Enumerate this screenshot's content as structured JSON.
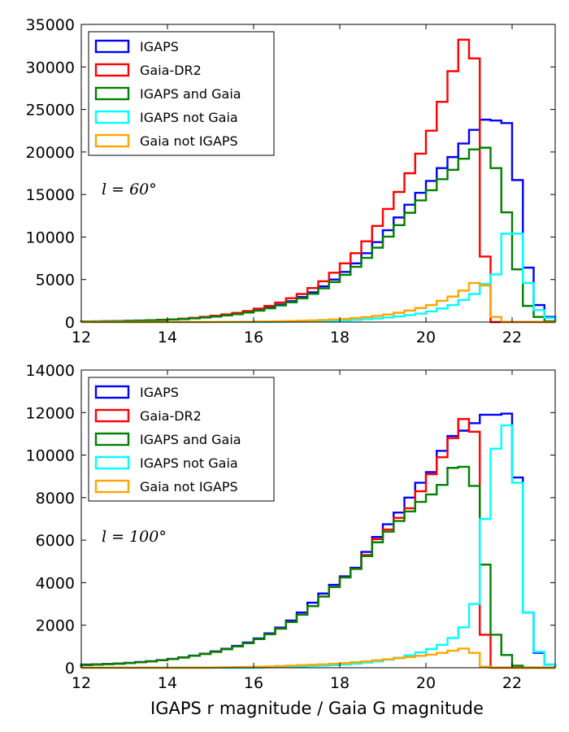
{
  "chart_data": [
    {
      "type": "histogram-step",
      "xlim": [
        12,
        23
      ],
      "ylim": [
        0,
        35000
      ],
      "xticks": [
        12,
        14,
        16,
        18,
        20,
        22
      ],
      "yticks": [
        0,
        5000,
        10000,
        15000,
        20000,
        25000,
        30000,
        35000
      ],
      "xlabel": "",
      "annotation": "l = 60°",
      "legend_position": "top-left",
      "bin_edges": [
        12,
        12.25,
        12.5,
        12.75,
        13,
        13.25,
        13.5,
        13.75,
        14,
        14.25,
        14.5,
        14.75,
        15,
        15.25,
        15.5,
        15.75,
        16,
        16.25,
        16.5,
        16.75,
        17,
        17.25,
        17.5,
        17.75,
        18,
        18.25,
        18.5,
        18.75,
        19,
        19.25,
        19.5,
        19.75,
        20,
        20.25,
        20.5,
        20.75,
        21,
        21.25,
        21.5,
        21.75,
        22,
        22.25,
        22.5,
        22.75,
        23
      ],
      "series": [
        {
          "name": "IGAPS",
          "color": "#0000ff",
          "values": [
            80,
            90,
            100,
            120,
            150,
            180,
            220,
            260,
            310,
            380,
            460,
            560,
            680,
            820,
            980,
            1180,
            1420,
            1700,
            2050,
            2450,
            2950,
            3500,
            4200,
            5000,
            5900,
            6900,
            8100,
            9400,
            10800,
            12300,
            13800,
            15200,
            16600,
            18100,
            19400,
            21000,
            22600,
            23800,
            23700,
            23400,
            16700,
            6400,
            2000,
            600
          ]
        },
        {
          "name": "Gaia-DR2",
          "color": "#ff0000",
          "values": [
            70,
            80,
            90,
            110,
            140,
            170,
            210,
            260,
            320,
            400,
            500,
            610,
            740,
            900,
            1080,
            1300,
            1580,
            1900,
            2300,
            2800,
            3300,
            4000,
            4800,
            5800,
            6900,
            8100,
            9500,
            11300,
            13300,
            15300,
            17500,
            19800,
            22500,
            25900,
            29500,
            33200,
            31000,
            7700,
            0,
            0,
            0,
            0,
            0,
            0
          ]
        },
        {
          "name": "IGAPS and Gaia",
          "color": "#008000",
          "values": [
            70,
            80,
            90,
            110,
            140,
            170,
            210,
            250,
            300,
            360,
            440,
            530,
            640,
            780,
            930,
            1120,
            1350,
            1620,
            1950,
            2330,
            2790,
            3320,
            3960,
            4700,
            5550,
            6500,
            7550,
            8750,
            10050,
            11400,
            12850,
            14300,
            15500,
            16800,
            17900,
            19200,
            20300,
            20500,
            18100,
            12900,
            6200,
            1900,
            600,
            100
          ]
        },
        {
          "name": "IGAPS not Gaia",
          "color": "#00ffff",
          "values": [
            0,
            0,
            0,
            0,
            0,
            0,
            0,
            0,
            0,
            0,
            0,
            0,
            0,
            0,
            0,
            0,
            10,
            20,
            30,
            40,
            60,
            80,
            110,
            150,
            200,
            260,
            340,
            430,
            540,
            670,
            820,
            1000,
            1250,
            1600,
            2000,
            2600,
            3300,
            4500,
            5600,
            10400,
            10400,
            4600,
            1400,
            500
          ]
        },
        {
          "name": "Gaia not IGAPS",
          "color": "#ffa500",
          "values": [
            0,
            0,
            0,
            0,
            0,
            0,
            0,
            0,
            0,
            0,
            0,
            0,
            10,
            20,
            30,
            40,
            60,
            80,
            100,
            130,
            160,
            200,
            250,
            310,
            380,
            470,
            580,
            720,
            890,
            1100,
            1350,
            1650,
            2000,
            2500,
            3000,
            3700,
            4600,
            4300,
            600,
            0,
            0,
            0,
            0,
            0
          ]
        }
      ]
    },
    {
      "type": "histogram-step",
      "xlim": [
        12,
        23
      ],
      "ylim": [
        0,
        14000
      ],
      "xticks": [
        12,
        14,
        16,
        18,
        20,
        22
      ],
      "yticks": [
        0,
        2000,
        4000,
        6000,
        8000,
        10000,
        12000,
        14000
      ],
      "xlabel": "IGAPS r magnitude / Gaia G magnitude",
      "annotation": "l = 100°",
      "legend_position": "top-left",
      "bin_edges": [
        12,
        12.25,
        12.5,
        12.75,
        13,
        13.25,
        13.5,
        13.75,
        14,
        14.25,
        14.5,
        14.75,
        15,
        15.25,
        15.5,
        15.75,
        16,
        16.25,
        16.5,
        16.75,
        17,
        17.25,
        17.5,
        17.75,
        18,
        18.25,
        18.5,
        18.75,
        19,
        19.25,
        19.5,
        19.75,
        20,
        20.25,
        20.5,
        20.75,
        21,
        21.25,
        21.5,
        21.75,
        22,
        22.25,
        22.5,
        22.75,
        23
      ],
      "series": [
        {
          "name": "IGAPS",
          "color": "#0000ff",
          "values": [
            150,
            160,
            180,
            200,
            230,
            270,
            310,
            360,
            420,
            490,
            570,
            660,
            770,
            890,
            1030,
            1190,
            1380,
            1620,
            1890,
            2220,
            2600,
            3060,
            3490,
            3900,
            4300,
            4700,
            5450,
            6150,
            6750,
            7300,
            8000,
            8700,
            9200,
            10200,
            10900,
            11150,
            11500,
            11900,
            11900,
            11950,
            8950,
            2600,
            700,
            150
          ]
        },
        {
          "name": "Gaia-DR2",
          "color": "#ff0000",
          "values": [
            130,
            150,
            170,
            190,
            220,
            260,
            300,
            350,
            410,
            480,
            560,
            650,
            750,
            870,
            1000,
            1160,
            1350,
            1580,
            1840,
            2150,
            2500,
            2900,
            3350,
            3800,
            4250,
            4650,
            5300,
            6050,
            6500,
            7050,
            7500,
            8300,
            9100,
            9900,
            10800,
            11700,
            11100,
            1550,
            0,
            0,
            0,
            0,
            0,
            0
          ]
        },
        {
          "name": "IGAPS and Gaia",
          "color": "#008000",
          "values": [
            130,
            150,
            170,
            190,
            220,
            260,
            300,
            350,
            410,
            480,
            560,
            650,
            750,
            870,
            1000,
            1160,
            1350,
            1580,
            1840,
            2150,
            2500,
            2900,
            3350,
            3800,
            4250,
            4650,
            5250,
            5900,
            6400,
            6900,
            7350,
            7800,
            8150,
            8600,
            9400,
            9450,
            8550,
            4850,
            1550,
            600,
            100,
            0,
            0,
            0
          ]
        },
        {
          "name": "IGAPS not Gaia",
          "color": "#00ffff",
          "values": [
            0,
            0,
            0,
            0,
            0,
            0,
            0,
            0,
            0,
            0,
            0,
            0,
            0,
            0,
            0,
            0,
            10,
            20,
            30,
            40,
            60,
            80,
            100,
            120,
            150,
            190,
            240,
            300,
            380,
            470,
            580,
            720,
            880,
            1080,
            1400,
            1900,
            3000,
            7000,
            10300,
            11400,
            8700,
            2600,
            750,
            150
          ]
        },
        {
          "name": "Gaia not IGAPS",
          "color": "#ffa500",
          "values": [
            0,
            0,
            0,
            0,
            0,
            0,
            0,
            0,
            0,
            0,
            0,
            0,
            10,
            20,
            30,
            40,
            50,
            60,
            80,
            100,
            120,
            140,
            160,
            190,
            220,
            260,
            300,
            350,
            400,
            450,
            500,
            560,
            620,
            700,
            800,
            900,
            700,
            50,
            0,
            0,
            0,
            0,
            0,
            0
          ]
        }
      ]
    }
  ]
}
